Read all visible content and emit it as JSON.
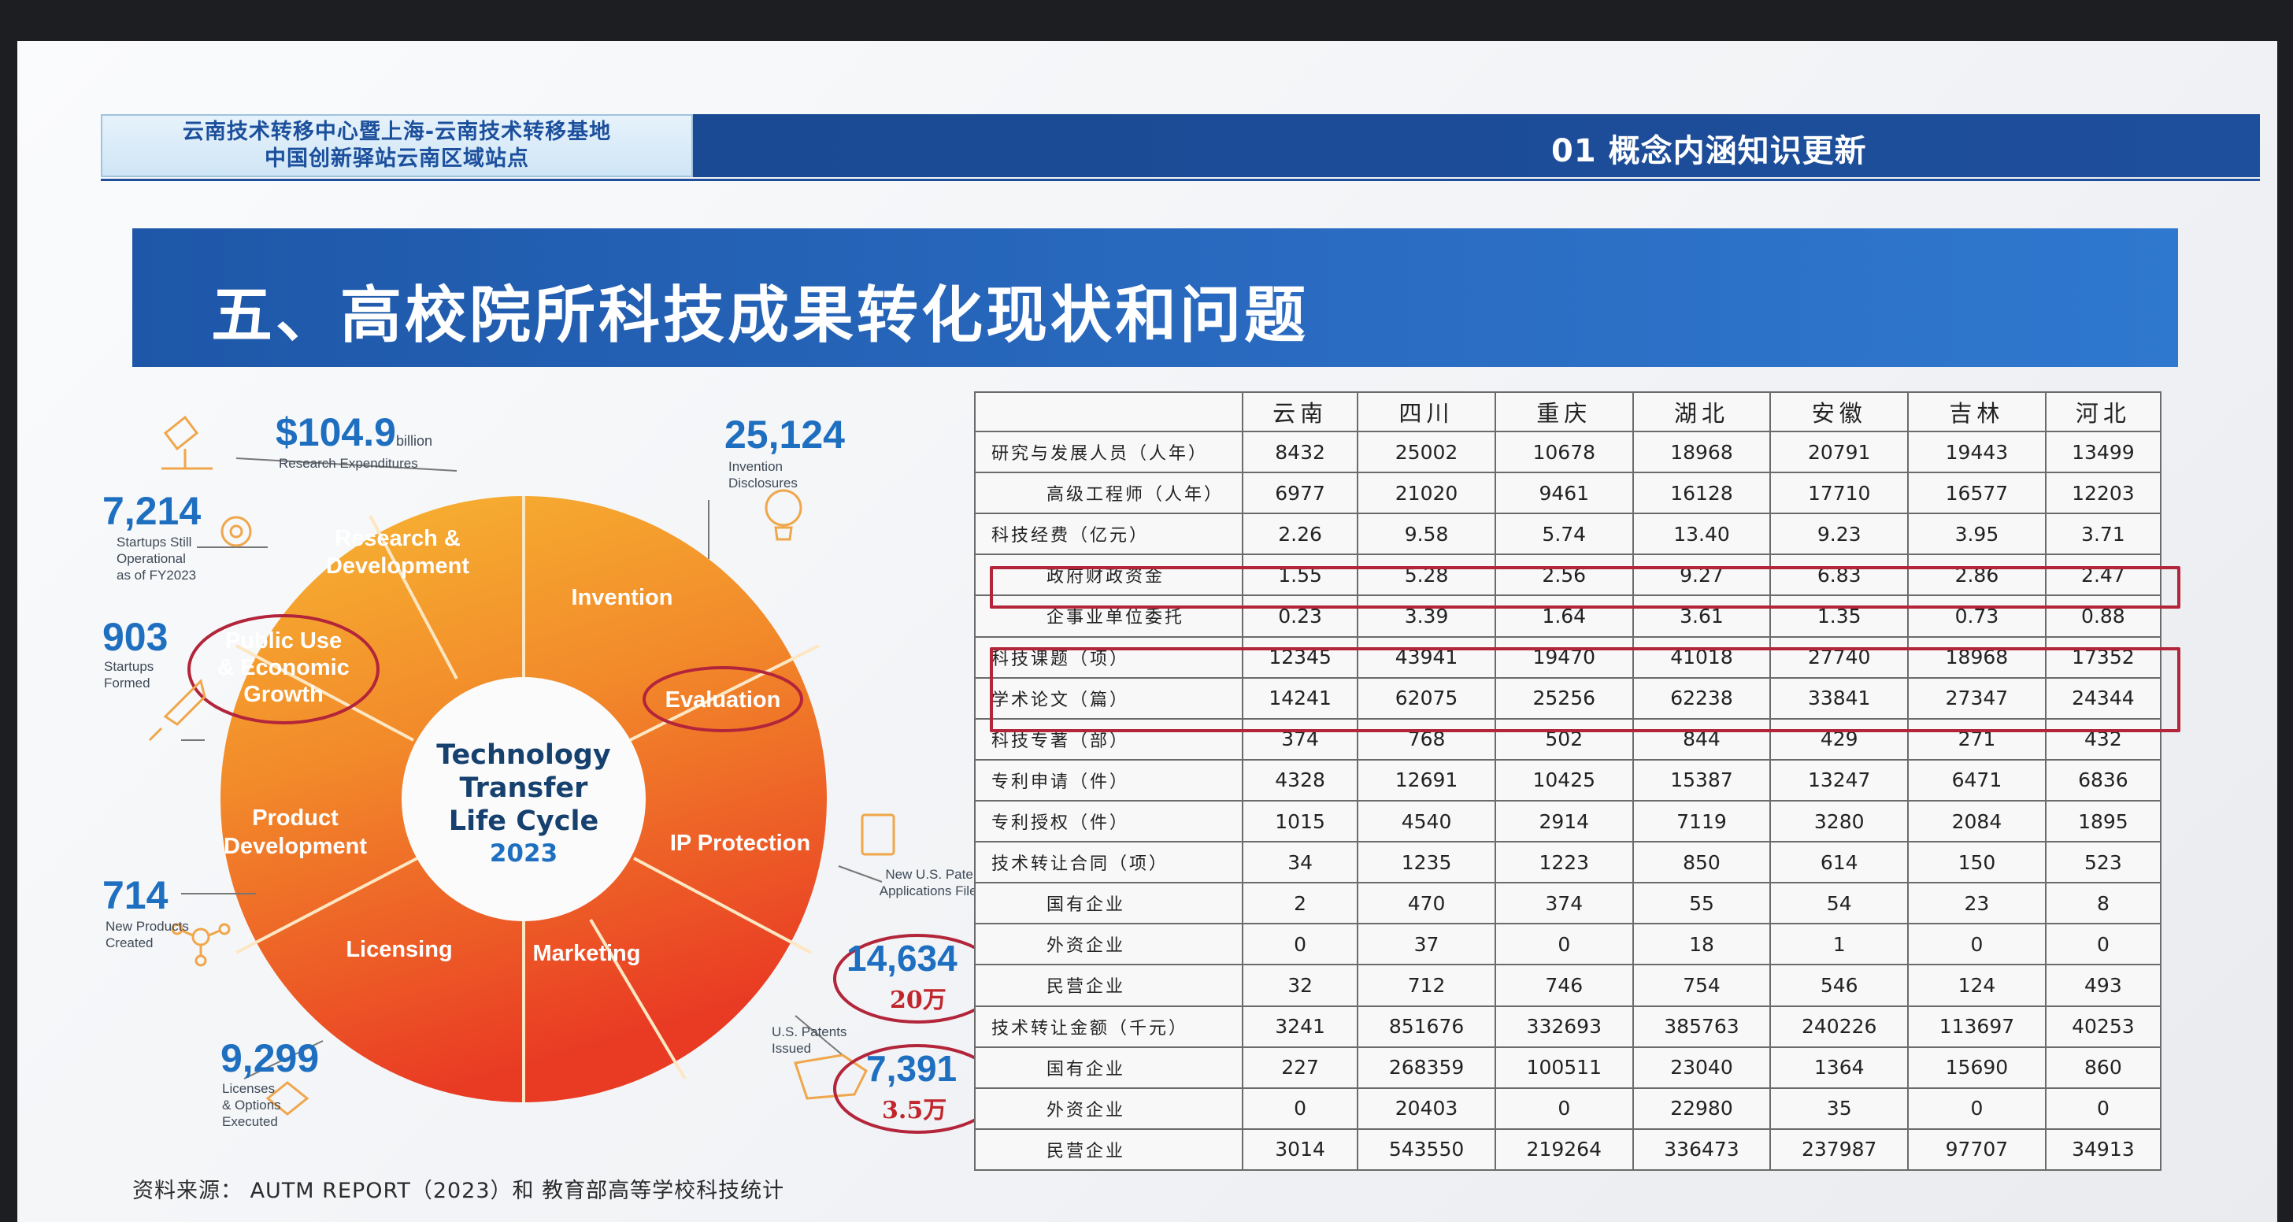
{
  "header": {
    "org_line1": "云南技术转移中心暨上海-云南技术转移基地",
    "org_line2": "中国创新驿站云南区域站点",
    "section": "01 概念内涵知识更新"
  },
  "title": "五、高校院所科技成果转化现状和问题",
  "diagram": {
    "center": [
      "Technology",
      "Transfer",
      "Life Cycle",
      "2023"
    ],
    "segments": {
      "research": [
        "Research &",
        "Development"
      ],
      "invention": "Invention",
      "evaluation": "Evaluation",
      "ip": "IP Protection",
      "marketing": "Marketing",
      "licensing": "Licensing",
      "product": [
        "Product",
        "Development"
      ],
      "public": [
        "Public Use",
        "& Economic",
        "Growth"
      ]
    },
    "stats": {
      "research_exp": {
        "value": "$104.9",
        "unit": "billion",
        "caption": "Research Expenditures"
      },
      "disclosures": {
        "value": "25,124",
        "caption": [
          "Invention",
          "Disclosures"
        ]
      },
      "startups_op": {
        "value": "7,214",
        "caption": [
          "Startups Still",
          "Operational",
          "as of FY2023"
        ]
      },
      "startups_formed": {
        "value": "903",
        "caption": [
          "Startups",
          "Formed"
        ]
      },
      "new_products": {
        "value": "714",
        "caption": [
          "New Products",
          "Created"
        ]
      },
      "licenses": {
        "value": "9,299",
        "caption": [
          "Licenses",
          "& Options",
          "Executed"
        ]
      },
      "patent_apps": {
        "value": "14,634",
        "caption": [
          "New U.S. Patent",
          "Applications Filed"
        ],
        "note": "20万"
      },
      "patents_issued": {
        "value": "7,391",
        "caption": [
          "U.S. Patents",
          "Issued"
        ],
        "note": "3.5万"
      }
    }
  },
  "table": {
    "columns": [
      "",
      "云南",
      "四川",
      "重庆",
      "湖北",
      "安徽",
      "吉林",
      "河北"
    ],
    "rows": [
      {
        "label": "研究与发展人员（人年）",
        "indent": 0,
        "values": [
          "8432",
          "25002",
          "10678",
          "18968",
          "20791",
          "19443",
          "13499"
        ]
      },
      {
        "label": "高级工程师（人年）",
        "indent": 1,
        "values": [
          "6977",
          "21020",
          "9461",
          "16128",
          "17710",
          "16577",
          "12203"
        ]
      },
      {
        "label": "科技经费（亿元）",
        "indent": 0,
        "values": [
          "2.26",
          "9.58",
          "5.74",
          "13.40",
          "9.23",
          "3.95",
          "3.71"
        ]
      },
      {
        "label": "政府财政资金",
        "indent": 1,
        "values": [
          "1.55",
          "5.28",
          "2.56",
          "9.27",
          "6.83",
          "2.86",
          "2.47"
        ]
      },
      {
        "label": "企事业单位委托",
        "indent": 1,
        "values": [
          "0.23",
          "3.39",
          "1.64",
          "3.61",
          "1.35",
          "0.73",
          "0.88"
        ]
      },
      {
        "label": "科技课题（项）",
        "indent": 0,
        "values": [
          "12345",
          "43941",
          "19470",
          "41018",
          "27740",
          "18968",
          "17352"
        ]
      },
      {
        "label": "学术论文（篇）",
        "indent": 0,
        "values": [
          "14241",
          "62075",
          "25256",
          "62238",
          "33841",
          "27347",
          "24344"
        ]
      },
      {
        "label": "科技专著（部）",
        "indent": 0,
        "values": [
          "374",
          "768",
          "502",
          "844",
          "429",
          "271",
          "432"
        ]
      },
      {
        "label": "专利申请（件）",
        "indent": 0,
        "values": [
          "4328",
          "12691",
          "10425",
          "15387",
          "13247",
          "6471",
          "6836"
        ]
      },
      {
        "label": "专利授权（件）",
        "indent": 0,
        "values": [
          "1015",
          "4540",
          "2914",
          "7119",
          "3280",
          "2084",
          "1895"
        ]
      },
      {
        "label": "技术转让合同（项）",
        "indent": 0,
        "values": [
          "34",
          "1235",
          "1223",
          "850",
          "614",
          "150",
          "523"
        ]
      },
      {
        "label": "国有企业",
        "indent": 1,
        "values": [
          "2",
          "470",
          "374",
          "55",
          "54",
          "23",
          "8"
        ]
      },
      {
        "label": "外资企业",
        "indent": 1,
        "values": [
          "0",
          "37",
          "0",
          "18",
          "1",
          "0",
          "0"
        ]
      },
      {
        "label": "民营企业",
        "indent": 1,
        "values": [
          "32",
          "712",
          "746",
          "754",
          "546",
          "124",
          "493"
        ]
      },
      {
        "label": "技术转让金额（千元）",
        "indent": 0,
        "values": [
          "3241",
          "851676",
          "332693",
          "385763",
          "240226",
          "113697",
          "40253"
        ]
      },
      {
        "label": "国有企业",
        "indent": 1,
        "values": [
          "227",
          "268359",
          "100511",
          "23040",
          "1364",
          "15690",
          "860"
        ]
      },
      {
        "label": "外资企业",
        "indent": 1,
        "values": [
          "0",
          "20403",
          "0",
          "22980",
          "35",
          "0",
          "0"
        ]
      },
      {
        "label": "民营企业",
        "indent": 1,
        "values": [
          "3014",
          "543550",
          "219264",
          "336473",
          "237987",
          "97707",
          "34913"
        ]
      }
    ]
  },
  "source": "资料来源： AUTM REPORT（2023）和 教育部高等学校科技统计",
  "colors": {
    "accent_blue": "#1e57a8",
    "highlight_red": "#b3253a",
    "stat_blue": "#1e6fc0"
  }
}
